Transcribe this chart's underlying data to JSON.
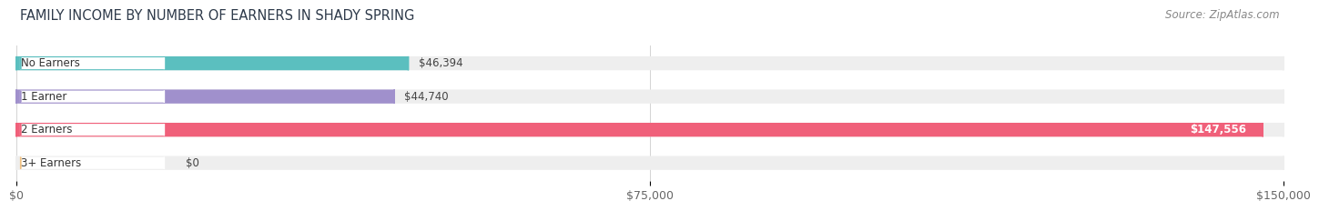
{
  "title": "FAMILY INCOME BY NUMBER OF EARNERS IN SHADY SPRING",
  "source": "Source: ZipAtlas.com",
  "categories": [
    "No Earners",
    "1 Earner",
    "2 Earners",
    "3+ Earners"
  ],
  "values": [
    46394,
    44740,
    147556,
    0
  ],
  "bar_colors": [
    "#5BBFBF",
    "#A090CC",
    "#F0607A",
    "#F0C080"
  ],
  "bar_bg_color": "#EEEEEE",
  "xlim": [
    0,
    150000
  ],
  "xticks": [
    0,
    75000,
    150000
  ],
  "xtick_labels": [
    "$0",
    "$75,000",
    "$150,000"
  ],
  "title_fontsize": 10.5,
  "source_fontsize": 8.5,
  "tick_fontsize": 9,
  "value_labels": [
    "$46,394",
    "$44,740",
    "$147,556",
    "$0"
  ],
  "background_color": "#FFFFFF",
  "fig_width": 14.06,
  "fig_height": 2.34
}
